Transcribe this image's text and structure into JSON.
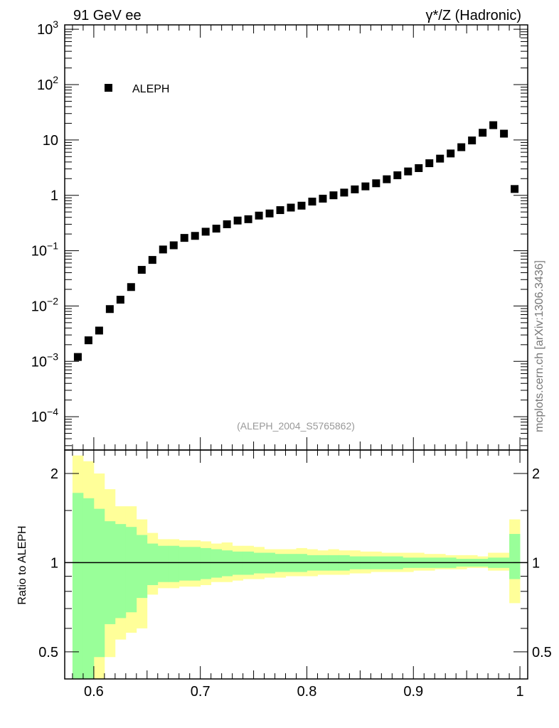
{
  "header": {
    "left_label": "91 GeV ee",
    "right_label": "γ*/Z (Hadronic)"
  },
  "side_label": "mcplots.cern.ch [arXiv:1306.3436]",
  "analysis_label": "(ALEPH_2004_S5765862)",
  "ratio_ylabel": "Ratio to ALEPH",
  "colors": {
    "marker": "#000000",
    "band_inner": "#99ff99",
    "band_outer": "#ffff99",
    "analysis_text": "#999999",
    "side_text": "#777777"
  },
  "chart_data": [
    {
      "type": "scatter",
      "panel": "main",
      "yscale": "log",
      "xlim": [
        0.5727,
        1.0073
      ],
      "ylim": [
        2.5e-05,
        1200
      ],
      "y_tick_labels": [
        {
          "value": 1000,
          "base": "10",
          "exp": "3"
        },
        {
          "value": 100,
          "base": "10",
          "exp": "2"
        },
        {
          "value": 10,
          "base": "10",
          "exp": ""
        },
        {
          "value": 1,
          "base": "1",
          "exp": ""
        },
        {
          "value": 0.1,
          "base": "10",
          "exp": "−1"
        },
        {
          "value": 0.01,
          "base": "10",
          "exp": "−2"
        },
        {
          "value": 0.001,
          "base": "10",
          "exp": "−3"
        },
        {
          "value": 0.0001,
          "base": "10",
          "exp": "−4"
        }
      ],
      "legend": {
        "position": "top-left",
        "entries": [
          "ALEPH"
        ]
      },
      "series": [
        {
          "name": "ALEPH",
          "x": [
            0.585,
            0.595,
            0.605,
            0.615,
            0.625,
            0.635,
            0.645,
            0.655,
            0.665,
            0.675,
            0.685,
            0.695,
            0.705,
            0.715,
            0.725,
            0.735,
            0.745,
            0.755,
            0.765,
            0.775,
            0.785,
            0.795,
            0.805,
            0.815,
            0.825,
            0.835,
            0.845,
            0.855,
            0.865,
            0.875,
            0.885,
            0.895,
            0.905,
            0.915,
            0.925,
            0.935,
            0.945,
            0.955,
            0.965,
            0.975,
            0.985,
            0.995
          ],
          "y": [
            0.0012,
            0.0024,
            0.0036,
            0.0088,
            0.013,
            0.022,
            0.045,
            0.068,
            0.105,
            0.125,
            0.17,
            0.185,
            0.22,
            0.25,
            0.3,
            0.35,
            0.37,
            0.43,
            0.47,
            0.54,
            0.6,
            0.65,
            0.77,
            0.87,
            1.0,
            1.12,
            1.28,
            1.45,
            1.65,
            1.95,
            2.3,
            2.7,
            3.1,
            3.8,
            4.6,
            5.7,
            7.4,
            9.8,
            13.5,
            18.5,
            13.0,
            1.3
          ]
        }
      ]
    },
    {
      "type": "area",
      "panel": "ratio",
      "ylabel": "Ratio to ALEPH",
      "yscale": "log",
      "xlim": [
        0.5727,
        1.0073
      ],
      "ylim": [
        0.405,
        2.4
      ],
      "x_tick_labels": [
        "0.6",
        "0.7",
        "0.8",
        "0.9",
        "1"
      ],
      "x_tick_values": [
        0.6,
        0.7,
        0.8,
        0.9,
        1.0
      ],
      "y_tick_labels": [
        {
          "value": 2,
          "label": "2"
        },
        {
          "value": 1,
          "label": "1"
        },
        {
          "value": 0.5,
          "label": "0.5"
        }
      ],
      "reference_line": 1,
      "bins": [
        0.58,
        0.59,
        0.6,
        0.61,
        0.62,
        0.63,
        0.64,
        0.65,
        0.66,
        0.67,
        0.68,
        0.69,
        0.7,
        0.71,
        0.72,
        0.73,
        0.74,
        0.75,
        0.76,
        0.77,
        0.78,
        0.79,
        0.8,
        0.81,
        0.82,
        0.83,
        0.84,
        0.85,
        0.86,
        0.87,
        0.88,
        0.89,
        0.9,
        0.91,
        0.92,
        0.93,
        0.94,
        0.95,
        0.96,
        0.97,
        0.98,
        0.99,
        1.0
      ],
      "inner_upper": [
        1.72,
        1.65,
        1.52,
        1.38,
        1.35,
        1.32,
        1.24,
        1.16,
        1.14,
        1.14,
        1.13,
        1.13,
        1.12,
        1.11,
        1.1,
        1.09,
        1.09,
        1.08,
        1.08,
        1.07,
        1.07,
        1.07,
        1.06,
        1.06,
        1.06,
        1.06,
        1.05,
        1.05,
        1.05,
        1.05,
        1.05,
        1.04,
        1.04,
        1.04,
        1.04,
        1.04,
        1.03,
        1.03,
        1.03,
        1.04,
        1.04,
        1.25
      ],
      "inner_lower": [
        0.28,
        0.35,
        0.48,
        0.62,
        0.65,
        0.68,
        0.76,
        0.84,
        0.86,
        0.86,
        0.87,
        0.87,
        0.88,
        0.89,
        0.9,
        0.91,
        0.91,
        0.92,
        0.92,
        0.93,
        0.93,
        0.93,
        0.94,
        0.94,
        0.94,
        0.94,
        0.95,
        0.95,
        0.95,
        0.95,
        0.95,
        0.96,
        0.96,
        0.96,
        0.96,
        0.96,
        0.97,
        0.97,
        0.97,
        0.96,
        0.96,
        0.88
      ],
      "outer_upper": [
        2.3,
        2.2,
        2.0,
        1.77,
        1.55,
        1.55,
        1.4,
        1.26,
        1.2,
        1.2,
        1.19,
        1.19,
        1.18,
        1.16,
        1.17,
        1.14,
        1.14,
        1.13,
        1.11,
        1.11,
        1.11,
        1.12,
        1.11,
        1.1,
        1.11,
        1.1,
        1.1,
        1.09,
        1.09,
        1.08,
        1.08,
        1.08,
        1.08,
        1.07,
        1.07,
        1.06,
        1.06,
        1.06,
        1.05,
        1.08,
        1.08,
        1.4
      ],
      "outer_lower": [
        0.25,
        0.2,
        0.3,
        0.48,
        0.55,
        0.58,
        0.6,
        0.78,
        0.82,
        0.82,
        0.83,
        0.83,
        0.84,
        0.86,
        0.86,
        0.87,
        0.88,
        0.88,
        0.89,
        0.89,
        0.9,
        0.9,
        0.9,
        0.91,
        0.91,
        0.91,
        0.92,
        0.92,
        0.93,
        0.93,
        0.93,
        0.93,
        0.94,
        0.94,
        0.95,
        0.95,
        0.95,
        0.96,
        0.96,
        0.94,
        0.94,
        0.73
      ]
    }
  ]
}
